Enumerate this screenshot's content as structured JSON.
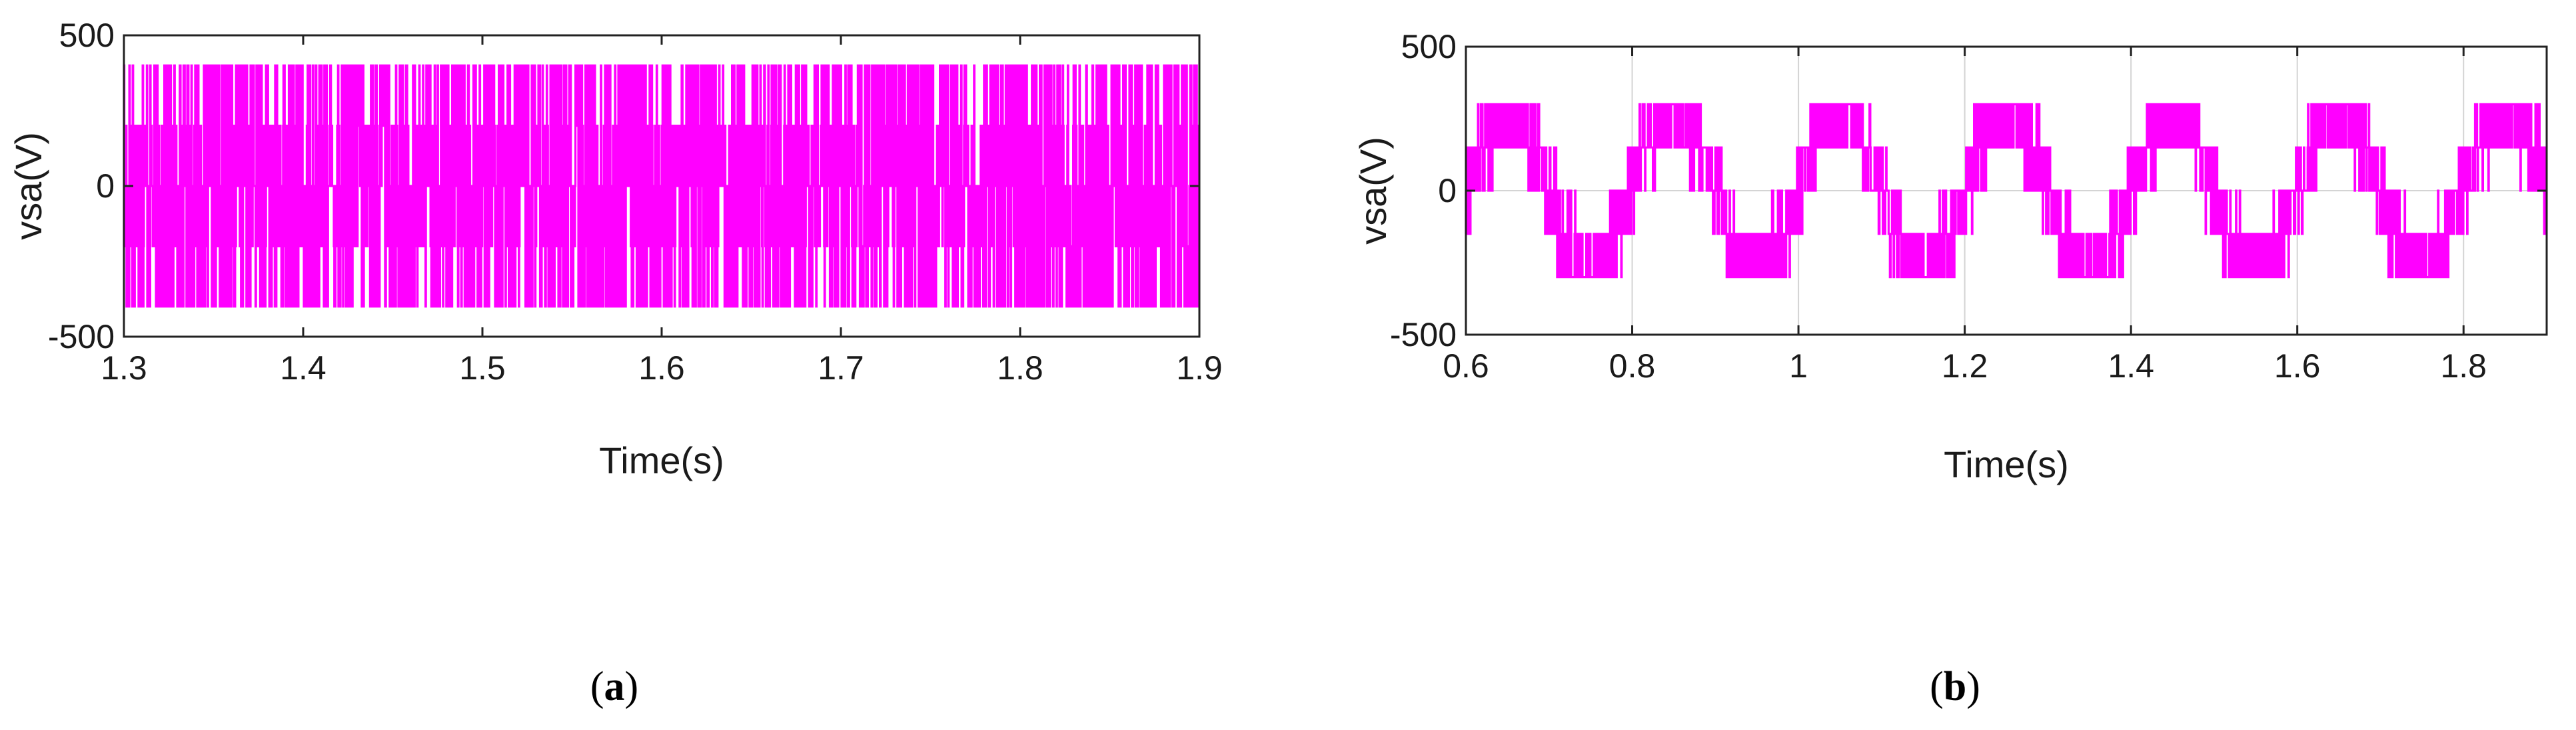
{
  "chart_data": [
    {
      "type": "line",
      "panel_label": "a",
      "xlabel": "Time(s)",
      "ylabel": "vsa(V)",
      "xlim": [
        1.3,
        1.9
      ],
      "ylim": [
        -500,
        500
      ],
      "xticks": [
        1.3,
        1.4,
        1.5,
        1.6,
        1.7,
        1.8,
        1.9
      ],
      "xtick_labels": [
        "1.3",
        "1.4",
        "1.5",
        "1.6",
        "1.7",
        "1.8",
        "1.9"
      ],
      "yticks": [
        -500,
        0,
        500
      ],
      "ytick_labels": [
        "-500",
        "0",
        "500"
      ],
      "grid": false,
      "series": [
        {
          "color": "#ff00ff",
          "signal": "multilevel PWM switching voltage",
          "levels": [
            -400,
            -200,
            0,
            200,
            400
          ]
        }
      ]
    },
    {
      "type": "line",
      "panel_label": "b",
      "xlabel": "Time(s)",
      "ylabel": "vsa(V)",
      "xlim": [
        0.6,
        1.9
      ],
      "ylim": [
        -500,
        500
      ],
      "xticks": [
        0.6,
        0.8,
        1.0,
        1.2,
        1.4,
        1.6,
        1.8
      ],
      "xtick_labels": [
        "0.6",
        "0.8",
        "1",
        "1.2",
        "1.4",
        "1.6",
        "1.8"
      ],
      "yticks": [
        -500,
        0,
        500
      ],
      "ytick_labels": [
        "-500",
        "0",
        "500"
      ],
      "grid": true,
      "series": [
        {
          "color": "#ff00ff",
          "signal": "multilevel PWM voltage with sinusoidal envelope",
          "levels": [
            -300,
            -150,
            0,
            150,
            300
          ],
          "fundamental_period_s": 0.2
        }
      ]
    }
  ]
}
